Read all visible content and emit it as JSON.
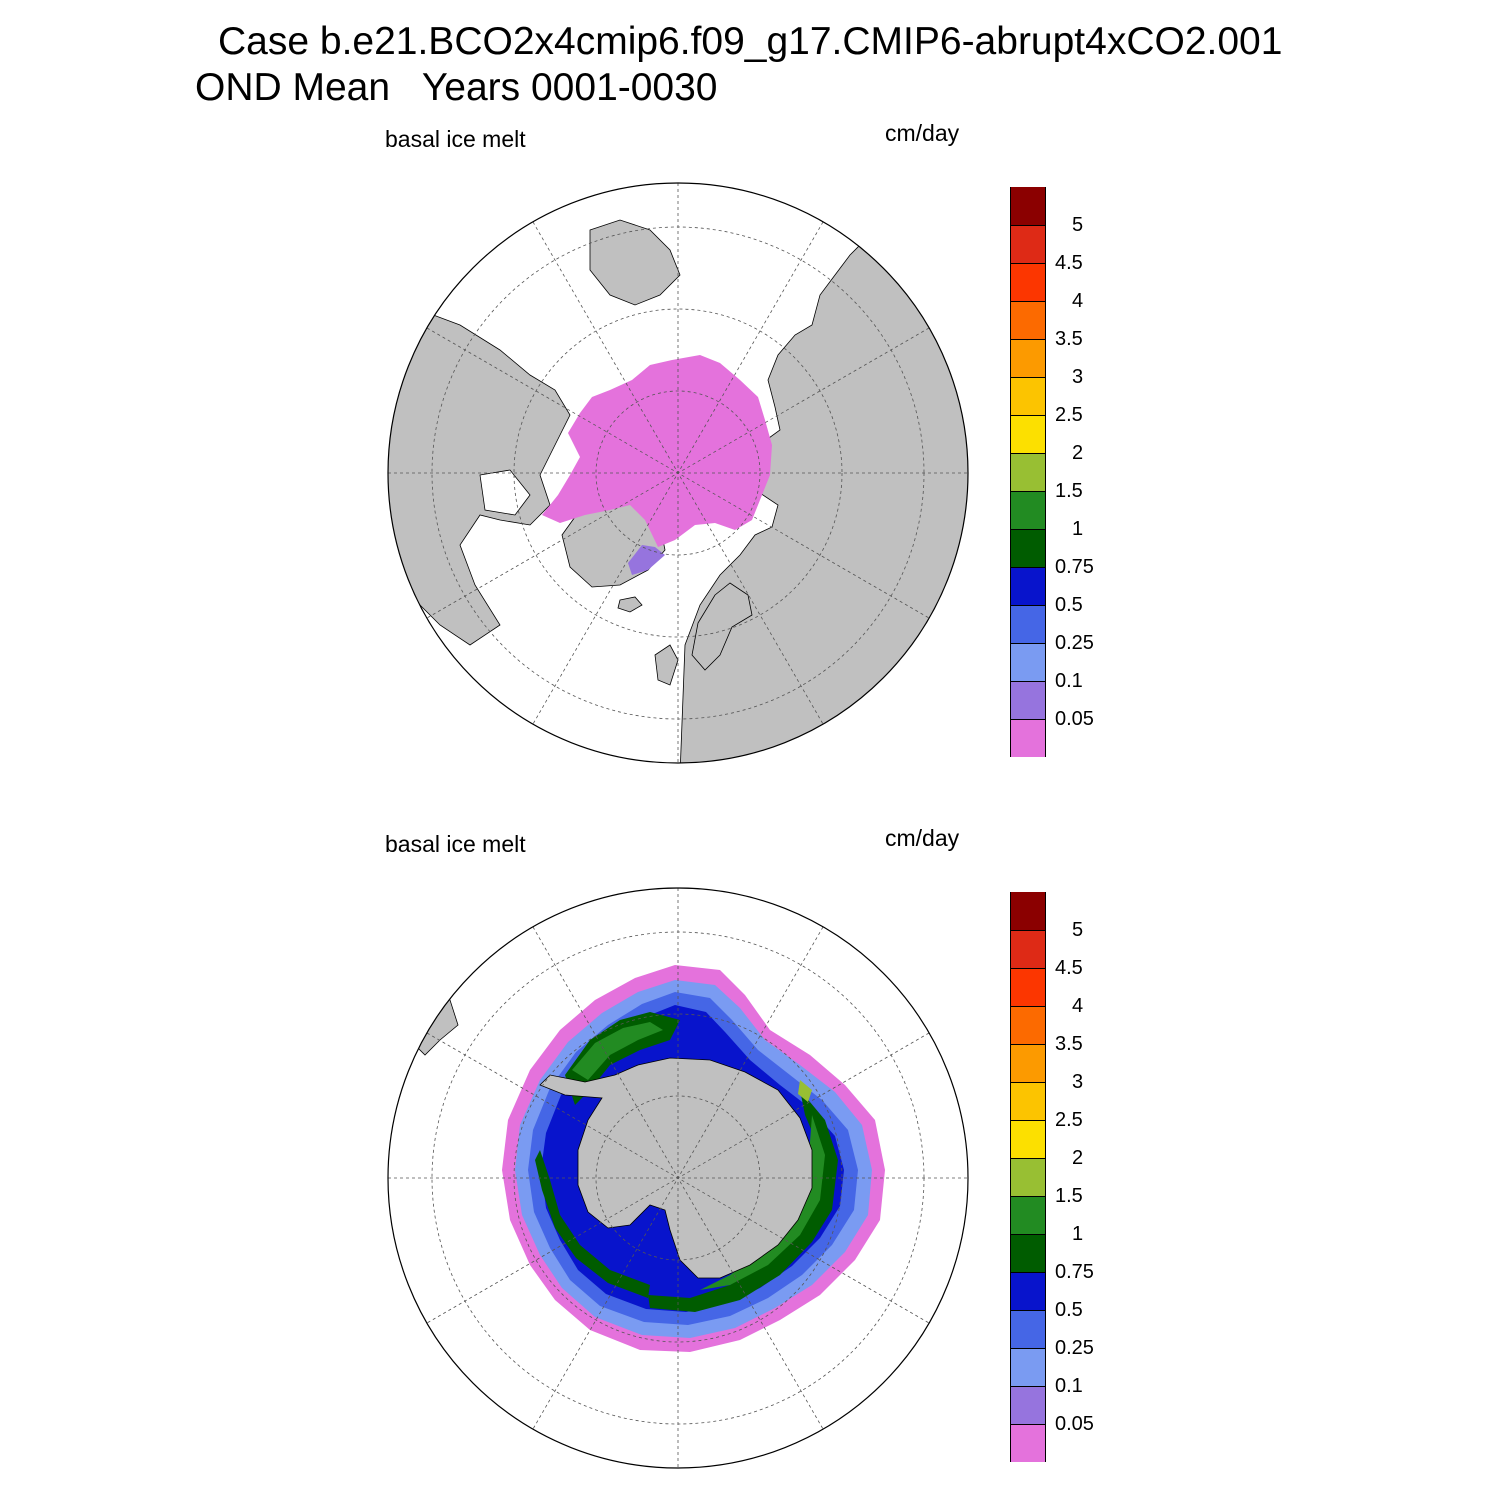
{
  "title": {
    "line1": "Case b.e21.BCO2x4cmip6.f09_g17.CMIP6-abrupt4xCO2.001",
    "line2": "OND Mean   Years 0001-0030"
  },
  "colors": {
    "land": "#c0c0c0",
    "ocean": "#ffffff",
    "levels": [
      "#e472dc",
      "#9674de",
      "#7a9bf2",
      "#4566e6",
      "#0814cc",
      "#005c00",
      "#228b22",
      "#98bf33",
      "#fce000",
      "#fcc400",
      "#fc9a00",
      "#fc6a00",
      "#fc3600",
      "#de2a16",
      "#8b0000"
    ]
  },
  "panels": [
    {
      "hemisphere": "north",
      "variable_label": "basal ice melt",
      "units_label": "cm/day",
      "colorbar": {
        "tick_labels": [
          "5",
          "4.5",
          "4",
          "3.5",
          "3",
          "2.5",
          "2",
          "1.5",
          "1",
          "0.75",
          "0.5",
          "0.25",
          "0.1",
          "0.05"
        ]
      }
    },
    {
      "hemisphere": "south",
      "variable_label": "basal ice melt",
      "units_label": "cm/day",
      "colorbar": {
        "tick_labels": [
          "5",
          "4.5",
          "4",
          "3.5",
          "3",
          "2.5",
          "2",
          "1.5",
          "1",
          "0.75",
          "0.5",
          "0.25",
          "0.1",
          "0.05"
        ]
      }
    }
  ]
}
